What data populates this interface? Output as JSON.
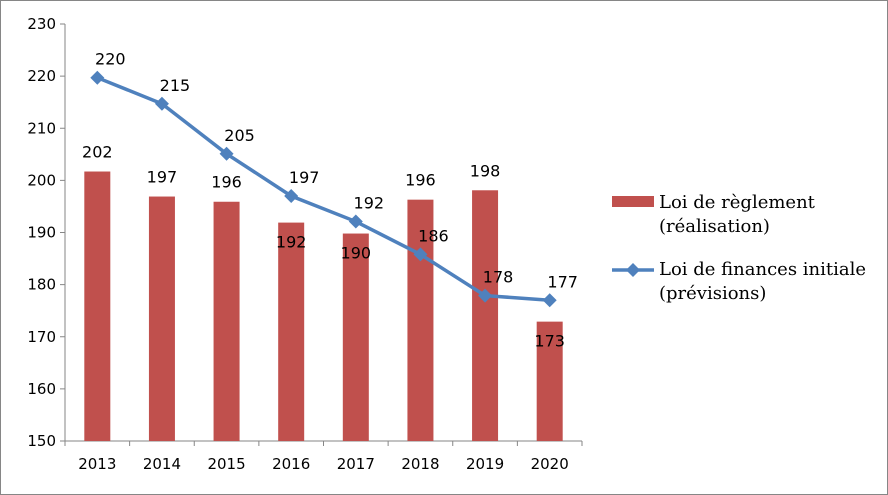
{
  "chart_data": {
    "type": "bar+line",
    "categories": [
      "2013",
      "2014",
      "2015",
      "2016",
      "2017",
      "2018",
      "2019",
      "2020"
    ],
    "series": [
      {
        "name": "Loi de règlement (réalisation)",
        "type": "bar",
        "color": "#C0504D",
        "values": [
          201.7,
          196.9,
          195.9,
          191.9,
          189.8,
          196.3,
          198.1,
          172.9
        ],
        "labels": [
          "202",
          "197",
          "196",
          "192",
          "190",
          "196",
          "198",
          "173"
        ]
      },
      {
        "name": "Loi de finances initiale (prévisions)",
        "type": "line",
        "color": "#4F81BD",
        "marker": "diamond",
        "values": [
          219.7,
          214.7,
          205.1,
          197.0,
          192.1,
          185.8,
          177.9,
          177.0
        ],
        "labels": [
          "220",
          "215",
          "205",
          "197",
          "192",
          "186",
          "178",
          "177"
        ]
      }
    ],
    "legend": {
      "placement": "right",
      "entries": [
        [
          "Loi de règlement",
          "(réalisation)"
        ],
        [
          "Loi de finances initiale",
          "(prévisions)"
        ]
      ]
    },
    "ylim": [
      150,
      230
    ],
    "yticks": [
      "150",
      "160",
      "170",
      "180",
      "190",
      "200",
      "210",
      "220",
      "230"
    ],
    "grid": false,
    "title": "",
    "xlabel": "",
    "ylabel": ""
  }
}
